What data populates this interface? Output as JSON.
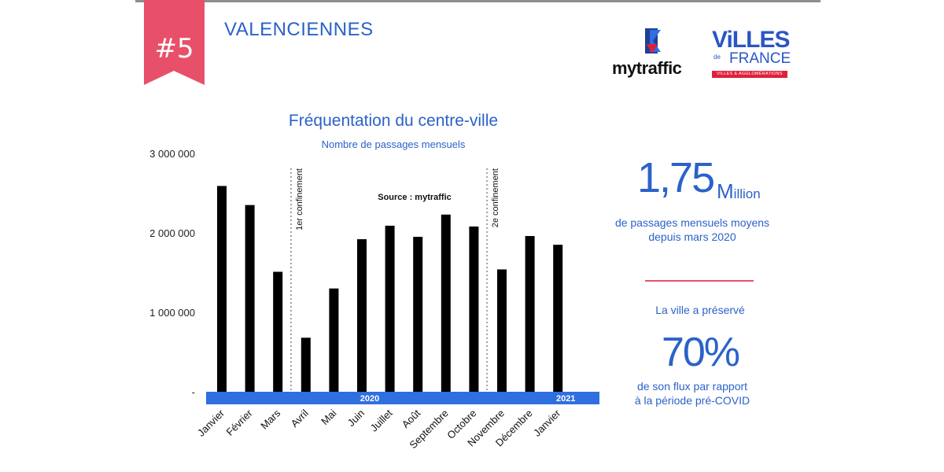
{
  "header": {
    "rank": "#5",
    "city": "VALENCIENNES"
  },
  "logos": {
    "mytraffic": "mytraffic",
    "villes": "ViLLES",
    "de": "de",
    "france": "FRANCE",
    "villes_sub": "VILLES & AGGLOMÉRATIONS"
  },
  "colors": {
    "accent": "#2b62c9",
    "badge": "#e8506a",
    "bar": "#000000",
    "axis_band": "#2f6fe0"
  },
  "chart_data": {
    "type": "bar",
    "title": "Fréquentation du centre-ville",
    "subtitle": "Nombre de passages mensuels",
    "categories": [
      "Janvier",
      "Février",
      "Mars",
      "Avril",
      "Mai",
      "Juin",
      "Juillet",
      "Août",
      "Septembre",
      "Octobre",
      "Novembre",
      "Décembre",
      "Janvier"
    ],
    "values": [
      2590000,
      2350000,
      1510000,
      680000,
      1300000,
      1920000,
      2090000,
      1950000,
      2230000,
      2080000,
      1540000,
      1960000,
      1850000
    ],
    "ylim": [
      0,
      3000000
    ],
    "yticks": [
      {
        "value": 0,
        "label": "-"
      },
      {
        "value": 1000000,
        "label": "1 000 000"
      },
      {
        "value": 2000000,
        "label": "2 000 000"
      },
      {
        "value": 3000000,
        "label": "3 000 000"
      }
    ],
    "xlabel": "",
    "ylabel": "",
    "grid": false,
    "years": [
      {
        "label": "2020",
        "after_index": 5
      },
      {
        "label": "2021",
        "after_index": 12
      }
    ],
    "annotations": [
      {
        "text": "1er confinement",
        "after_index": 2
      },
      {
        "text": "2e confinement",
        "after_index": 9
      }
    ],
    "source": "Source : mytraffic"
  },
  "stats": {
    "big_value": "1,75",
    "big_unit_initial": "M",
    "big_unit_rest": "illion",
    "desc1_line1": "de passages mensuels moyens",
    "desc1_line2": "depuis mars 2020",
    "desc2": "La ville a préservé",
    "pct": "70%",
    "desc3_line1": "de son flux par rapport",
    "desc3_line2": "à la période pré-COVID"
  }
}
